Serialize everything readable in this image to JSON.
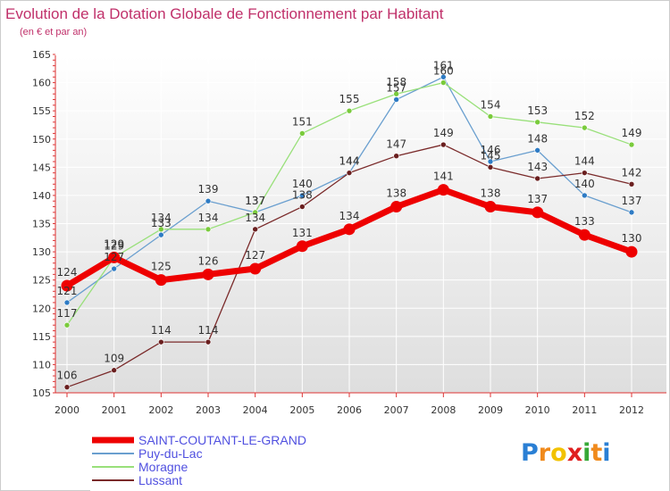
{
  "chart_data": {
    "type": "line",
    "title": "Evolution de la Dotation Globale de Fonctionnement par Habitant",
    "subtitle": "(en € et par an)",
    "xlabel": "",
    "ylabel": "",
    "ylim": [
      105,
      165
    ],
    "yticks": [
      105,
      110,
      115,
      120,
      125,
      130,
      135,
      140,
      145,
      150,
      155,
      160,
      165
    ],
    "categories": [
      "2000",
      "2001",
      "2002",
      "2003",
      "2004",
      "2005",
      "2006",
      "2007",
      "2008",
      "2009",
      "2010",
      "2011",
      "2012"
    ],
    "grid": true,
    "legend_position": "bottom-left",
    "series": [
      {
        "name": "SAINT-COUTANT-LE-GRAND",
        "color": "#ee0000",
        "marker_color": "#ee0000",
        "emphasis": "bold",
        "values": [
          124,
          129,
          125,
          126,
          127,
          131,
          134,
          138,
          141,
          138,
          137,
          133,
          130
        ]
      },
      {
        "name": "Puy-du-Lac",
        "color": "#6a9fcf",
        "marker_color": "#2e7bc4",
        "emphasis": "normal",
        "values": [
          121,
          127,
          133,
          139,
          137,
          140,
          144,
          157,
          161,
          146,
          148,
          140,
          137
        ]
      },
      {
        "name": "Moragne",
        "color": "#99e07a",
        "marker_color": "#7acb3c",
        "emphasis": "normal",
        "values": [
          117,
          129,
          134,
          134,
          137,
          151,
          155,
          158,
          160,
          154,
          153,
          152,
          149
        ]
      },
      {
        "name": "Lussant",
        "color": "#7a2a2a",
        "marker_color": "#6a1f1f",
        "emphasis": "normal",
        "values": [
          106,
          109,
          114,
          114,
          134,
          138,
          144,
          147,
          149,
          145,
          143,
          144,
          142
        ]
      }
    ]
  },
  "branding": {
    "logo_text": "Proxiti",
    "title_color": "#c0306a",
    "legend_text_color": "#5050e0"
  }
}
